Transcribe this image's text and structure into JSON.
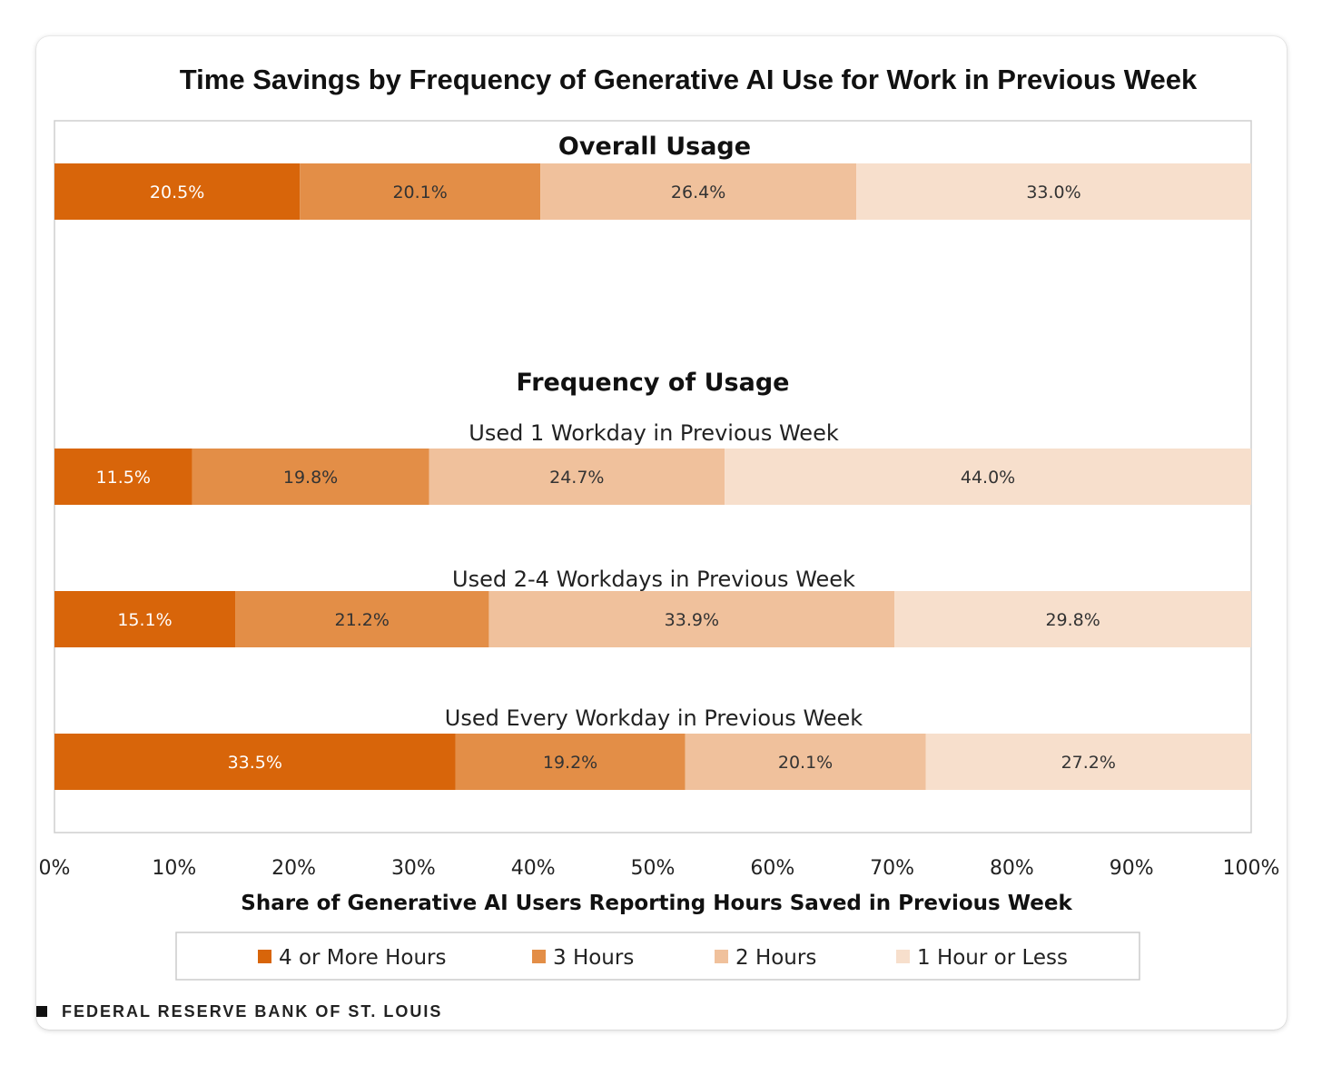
{
  "title": "Time Savings by Frequency of Generative AI Use for Work in Previous Week",
  "footer": "FEDERAL RESERVE BANK OF ST. LOUIS",
  "colors": {
    "4 or More Hours": "#d8650a",
    "3 Hours": "#e38e47",
    "2 Hours": "#f0c19c",
    "1 Hour or Less": "#f7dfcc"
  },
  "chart_data": {
    "type": "bar",
    "orientation": "horizontal",
    "stacked": true,
    "xlabel": "Share of Generative AI Users Reporting Hours Saved in Previous Week",
    "xlim": [
      0,
      100
    ],
    "x_ticks": [
      "0%",
      "10%",
      "20%",
      "30%",
      "40%",
      "50%",
      "60%",
      "70%",
      "80%",
      "90%",
      "100%"
    ],
    "section_titles": [
      "Overall Usage",
      "Frequency of Usage"
    ],
    "categories": [
      "",
      "Used 1 Workday in Previous Week",
      "Used 2-4 Workdays in Previous Week",
      "Used Every Workday in Previous Week"
    ],
    "series": [
      {
        "name": "4 or More Hours",
        "values": [
          20.5,
          11.5,
          15.1,
          33.5
        ],
        "labels": [
          "20.5%",
          "11.5%",
          "15.1%",
          "33.5%"
        ]
      },
      {
        "name": "3 Hours",
        "values": [
          20.1,
          19.8,
          21.2,
          19.2
        ],
        "labels": [
          "20.1%",
          "19.8%",
          "21.2%",
          "19.2%"
        ]
      },
      {
        "name": "2 Hours",
        "values": [
          26.4,
          24.7,
          33.9,
          20.1
        ],
        "labels": [
          "26.4%",
          "24.7%",
          "33.9%",
          "20.1%"
        ]
      },
      {
        "name": "1 Hour or Less",
        "values": [
          33.0,
          44.0,
          29.8,
          27.2
        ],
        "labels": [
          "33.0%",
          "44.0%",
          "29.8%",
          "27.2%"
        ]
      }
    ],
    "legend_position": "bottom"
  }
}
